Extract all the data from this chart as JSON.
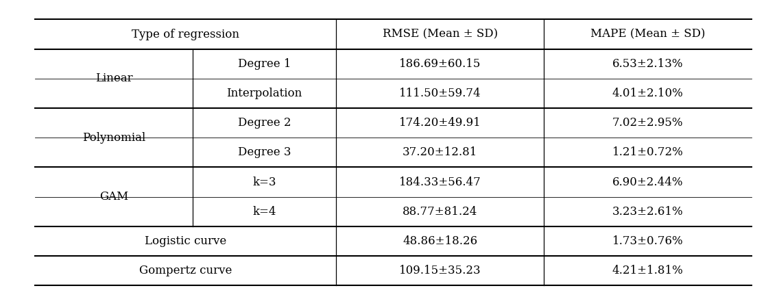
{
  "col_headers": [
    "Type of regression",
    "RMSE (Mean ± SD)",
    "MAPE (Mean ± SD)"
  ],
  "rows": [
    {
      "group": "Linear",
      "subtype": "Degree 1",
      "rmse": "186.69±60.15",
      "mape": "6.53±2.13%"
    },
    {
      "group": "Linear",
      "subtype": "Interpolation",
      "rmse": "111.50±59.74",
      "mape": "4.01±2.10%"
    },
    {
      "group": "Polynomial",
      "subtype": "Degree 2",
      "rmse": "174.20±49.91",
      "mape": "7.02±2.95%"
    },
    {
      "group": "Polynomial",
      "subtype": "Degree 3",
      "rmse": "37.20±12.81",
      "mape": "1.21±0.72%"
    },
    {
      "group": "GAM",
      "subtype": "k=3",
      "rmse": "184.33±56.47",
      "mape": "6.90±2.44%"
    },
    {
      "group": "GAM",
      "subtype": "k=4",
      "rmse": "88.77±81.24",
      "mape": "3.23±2.61%"
    },
    {
      "group": "Logistic curve",
      "subtype": null,
      "rmse": "48.86±18.26",
      "mape": "1.73±0.76%"
    },
    {
      "group": "Gompertz curve",
      "subtype": null,
      "rmse": "109.15±35.23",
      "mape": "4.21±1.81%"
    }
  ],
  "groups": [
    {
      "name": "Linear",
      "rows": [
        0,
        1
      ],
      "has_subtype": true
    },
    {
      "name": "Polynomial",
      "rows": [
        2,
        3
      ],
      "has_subtype": true
    },
    {
      "name": "GAM",
      "rows": [
        4,
        5
      ],
      "has_subtype": true
    },
    {
      "name": "Logistic curve",
      "rows": [
        6
      ],
      "has_subtype": false
    },
    {
      "name": "Gompertz curve",
      "rows": [
        7
      ],
      "has_subtype": false
    }
  ],
  "figsize": [
    11.36,
    4.37
  ],
  "dpi": 100,
  "bg_color": "#ffffff",
  "text_color": "#000000",
  "fontsize": 12,
  "font_family": "DejaVu Serif"
}
